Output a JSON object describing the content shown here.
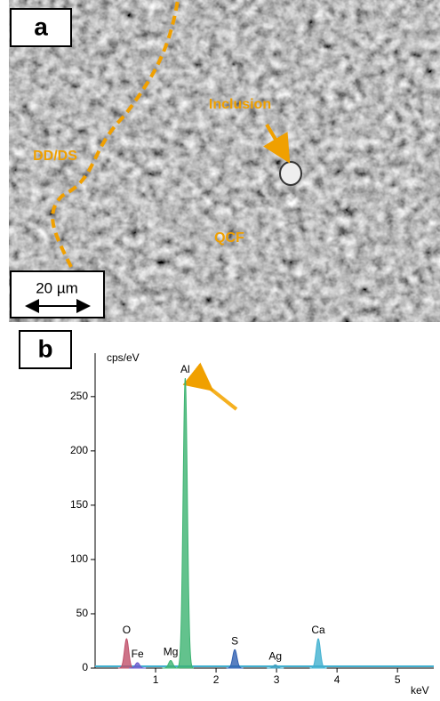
{
  "panel_a": {
    "label": "a",
    "annotations": [
      "Inclusion",
      "DD/DS",
      "QCF"
    ],
    "scale_bar": "20 µm"
  },
  "chart_data": {
    "type": "spectrum",
    "panel_label": "b",
    "y_label": "cps/eV",
    "x_label": "keV",
    "peaks": [
      {
        "label": "O",
        "x": 0.52,
        "value": 27,
        "color": "#c0506a"
      },
      {
        "label": "Fe",
        "x": 0.7,
        "value": 5,
        "color": "#6a5acd"
      },
      {
        "label": "Mg",
        "x": 1.25,
        "value": 7,
        "color": "#3cb371"
      },
      {
        "label": "Al",
        "x": 1.49,
        "value": 267,
        "color": "#3cb371"
      },
      {
        "label": "S",
        "x": 2.31,
        "value": 17,
        "color": "#2f5fb0"
      },
      {
        "label": "Ag",
        "x": 2.98,
        "value": 3,
        "color": "#40a0c0"
      },
      {
        "label": "Ca",
        "x": 3.69,
        "value": 27,
        "color": "#40b0d0"
      }
    ],
    "xlim": [
      0,
      5.6
    ],
    "ylim": [
      0,
      290
    ],
    "xticks": [
      1,
      2,
      3,
      4,
      5
    ],
    "yticks": [
      0,
      50,
      100,
      150,
      200,
      250
    ]
  }
}
